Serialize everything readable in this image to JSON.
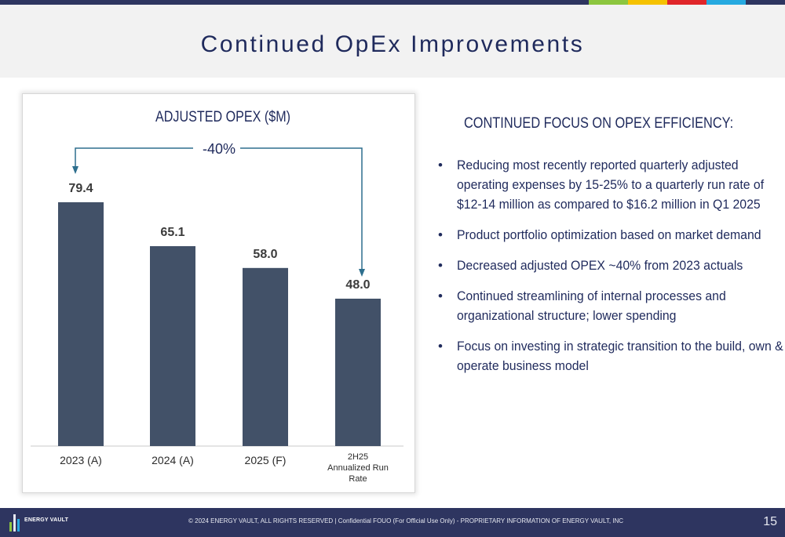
{
  "slide": {
    "title": "Continued OpEx Improvements",
    "page_number": "15"
  },
  "colors": {
    "navy": "#2e3560",
    "bar": "#425168",
    "text": "#1f2a5c",
    "arrow": "#2e6f8e",
    "stripes": [
      "#8cc63f",
      "#f5c200",
      "#e0262a",
      "#26a9e0"
    ]
  },
  "chart_data": {
    "type": "bar",
    "title": "ADJUSTED OPEX  ($M)",
    "categories": [
      "2023 (A)",
      "2024 (A)",
      "2025 (F)",
      "2H25 Annualized Run Rate"
    ],
    "values": [
      79.4,
      65.1,
      58.0,
      48.0
    ],
    "value_labels": [
      "79.4",
      "65.1",
      "58.0",
      "48.0"
    ],
    "ylim": [
      0,
      79.4
    ],
    "annotation": "-40%",
    "annotation_from": "2023 (A)",
    "annotation_to": "2H25 Annualized Run Rate"
  },
  "right_panel": {
    "heading": "CONTINUED FOCUS ON OPEX EFFICIENCY:",
    "bullets": [
      "Reducing most recently reported quarterly adjusted operating expenses by 15-25% to a quarterly run rate of $12-14 million as compared to $16.2 million in Q1 2025",
      "Product portfolio optimization based on market demand",
      "Decreased adjusted OPEX ~40% from 2023 actuals",
      "Continued streamlining of internal processes and organizational structure; lower spending",
      "Focus on investing in strategic transition to the build, own & operate business model"
    ]
  },
  "footer": {
    "logo_text": "ENERGY VAULT",
    "note": "© 2024 ENERGY VAULT, ALL RIGHTS RESERVED  |  Confidential FOUO (For Official Use Only) - PROPRIETARY INFORMATION OF ENERGY VAULT, INC"
  }
}
